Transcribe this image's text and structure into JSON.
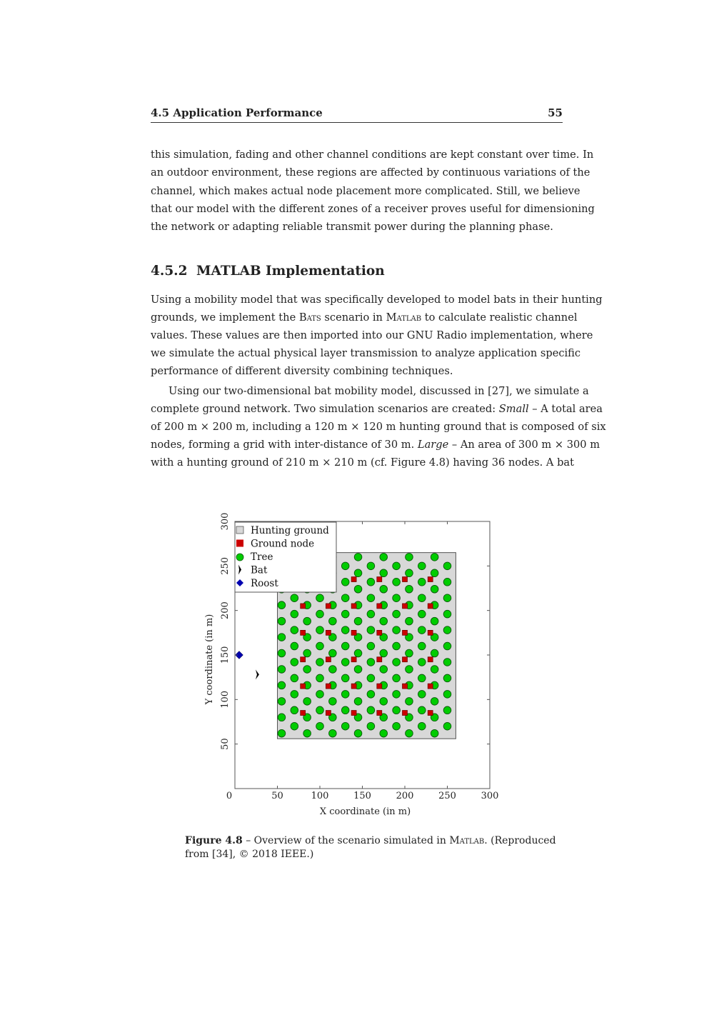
{
  "header": {
    "title": "4.5 Application Performance",
    "page_number": "55"
  },
  "paragraphs": [
    {
      "indent": false,
      "lines": [
        [
          {
            "t": "this simulation, fading and other channel conditions are kept constant over time. In"
          }
        ],
        [
          {
            "t": "an outdoor environment, these regions are affected by continuous variations of the"
          }
        ],
        [
          {
            "t": "channel, which makes actual node placement more complicated. Still, we believe"
          }
        ],
        [
          {
            "t": "that our model with the different zones of a receiver proves useful for dimensioning"
          }
        ],
        [
          {
            "t": "the network or adapting reliable transmit power during the planning phase."
          }
        ]
      ]
    },
    {
      "indent": false,
      "lines": [
        [
          {
            "t": "Using a mobility model that was specifically developed to model bats in their hunting"
          }
        ],
        [
          {
            "t": "grounds, we implement the "
          },
          {
            "t": "Bats",
            "sc": true
          },
          {
            "t": " scenario in "
          },
          {
            "t": "Matlab",
            "sc": true
          },
          {
            "t": " to calculate realistic channel"
          }
        ],
        [
          {
            "t": "values. These values are then imported into our GNU Radio implementation, where"
          }
        ],
        [
          {
            "t": "we simulate the actual physical layer transmission to analyze application specific"
          }
        ],
        [
          {
            "t": "performance of different diversity combining techniques."
          }
        ]
      ]
    },
    {
      "indent": true,
      "lines": [
        [
          {
            "t": "Using our two-dimensional bat mobility model, discussed in [27], we simulate a"
          }
        ],
        [
          {
            "t": "complete ground network. Two simulation scenarios are created: "
          },
          {
            "t": "Small",
            "it": true
          },
          {
            "t": " – A total area"
          }
        ],
        [
          {
            "t": "of 200 m × 200 m, including a 120 m × 120 m hunting ground that is composed of six"
          }
        ],
        [
          {
            "t": "nodes, forming a grid with inter-distance of 30 m. "
          },
          {
            "t": "Large",
            "it": true
          },
          {
            "t": " – An area of 300 m × 300 m"
          }
        ],
        [
          {
            "t": "with a hunting ground of 210 m × 210 m (cf. Figure 4.8) having 36 nodes. A bat"
          }
        ]
      ],
      "continues": true
    }
  ],
  "section": {
    "number": "4.5.2",
    "title": "MATLAB Implementation"
  },
  "caption": {
    "label": "Figure 4.8",
    "line1_pre": " – Overview of the scenario simulated in ",
    "line1_sc": "Matlab",
    "line1_post": ".  (Reproduced",
    "line2": "from [34], © 2018 IEEE.)"
  },
  "chart_data": {
    "type": "scatter",
    "xlabel": "X coordinate (in m)",
    "ylabel": "Y coordinate (in m)",
    "xlim": [
      0,
      300
    ],
    "ylim": [
      0,
      300
    ],
    "xticks": [
      "0",
      "50",
      "100",
      "150",
      "200",
      "250",
      "300"
    ],
    "yticks": [
      "50",
      "100",
      "150",
      "200",
      "250",
      "300"
    ],
    "grid": false,
    "legend_position": "top-left",
    "legend": [
      "Hunting ground",
      "Ground node",
      "Tree",
      "Bat",
      "Roost"
    ],
    "colors": {
      "hunting_ground": "#d8d8d8",
      "ground_node": "#cc0000",
      "tree": "#00cc00",
      "bat": "#000000",
      "roost": "#0000b0"
    },
    "hunting_ground": {
      "x": [
        50,
        260
      ],
      "y": [
        56,
        265
      ]
    },
    "ground_nodes": [
      [
        80,
        85
      ],
      [
        110,
        85
      ],
      [
        140,
        85
      ],
      [
        170,
        85
      ],
      [
        200,
        85
      ],
      [
        230,
        85
      ],
      [
        80,
        115
      ],
      [
        110,
        115
      ],
      [
        140,
        115
      ],
      [
        170,
        115
      ],
      [
        200,
        115
      ],
      [
        230,
        115
      ],
      [
        80,
        145
      ],
      [
        110,
        145
      ],
      [
        140,
        145
      ],
      [
        170,
        145
      ],
      [
        200,
        145
      ],
      [
        230,
        145
      ],
      [
        80,
        175
      ],
      [
        110,
        175
      ],
      [
        140,
        175
      ],
      [
        170,
        175
      ],
      [
        200,
        175
      ],
      [
        230,
        175
      ],
      [
        80,
        205
      ],
      [
        110,
        205
      ],
      [
        140,
        205
      ],
      [
        170,
        205
      ],
      [
        200,
        205
      ],
      [
        230,
        205
      ],
      [
        80,
        235
      ],
      [
        110,
        235
      ],
      [
        140,
        235
      ],
      [
        170,
        235
      ],
      [
        200,
        235
      ],
      [
        230,
        235
      ]
    ],
    "trees": [
      {
        "x": 55,
        "y": [
          62,
          80,
          98,
          116,
          134,
          152,
          170,
          188,
          206,
          224,
          242,
          260
        ]
      },
      {
        "x": 70,
        "y": [
          70,
          88,
          106,
          124,
          142,
          160,
          178,
          196,
          214,
          232,
          250
        ]
      },
      {
        "x": 85,
        "y": [
          62,
          80,
          98,
          116,
          134,
          152,
          170,
          188,
          206,
          224,
          242,
          260
        ]
      },
      {
        "x": 100,
        "y": [
          70,
          88,
          106,
          124,
          142,
          160,
          178,
          196,
          214,
          232,
          250
        ]
      },
      {
        "x": 115,
        "y": [
          62,
          80,
          98,
          116,
          134,
          152,
          170,
          188,
          206,
          224,
          242,
          260
        ]
      },
      {
        "x": 130,
        "y": [
          70,
          88,
          106,
          124,
          142,
          160,
          178,
          196,
          214,
          232,
          250
        ]
      },
      {
        "x": 145,
        "y": [
          62,
          80,
          98,
          116,
          134,
          152,
          170,
          188,
          206,
          224,
          242,
          260
        ]
      },
      {
        "x": 160,
        "y": [
          70,
          88,
          106,
          124,
          142,
          160,
          178,
          196,
          214,
          232,
          250
        ]
      },
      {
        "x": 175,
        "y": [
          62,
          80,
          98,
          116,
          134,
          152,
          170,
          188,
          206,
          224,
          242,
          260
        ]
      },
      {
        "x": 190,
        "y": [
          70,
          88,
          106,
          124,
          142,
          160,
          178,
          196,
          214,
          232,
          250
        ]
      },
      {
        "x": 205,
        "y": [
          62,
          80,
          98,
          116,
          134,
          152,
          170,
          188,
          206,
          224,
          242,
          260
        ]
      },
      {
        "x": 220,
        "y": [
          70,
          88,
          106,
          124,
          142,
          160,
          178,
          196,
          214,
          232,
          250
        ]
      },
      {
        "x": 235,
        "y": [
          62,
          80,
          98,
          116,
          134,
          152,
          170,
          188,
          206,
          224,
          242,
          260
        ]
      },
      {
        "x": 250,
        "y": [
          70,
          88,
          106,
          124,
          142,
          160,
          178,
          196,
          214,
          232,
          250
        ]
      }
    ],
    "bat": [
      26,
      128
    ],
    "roost": [
      5,
      150
    ]
  }
}
